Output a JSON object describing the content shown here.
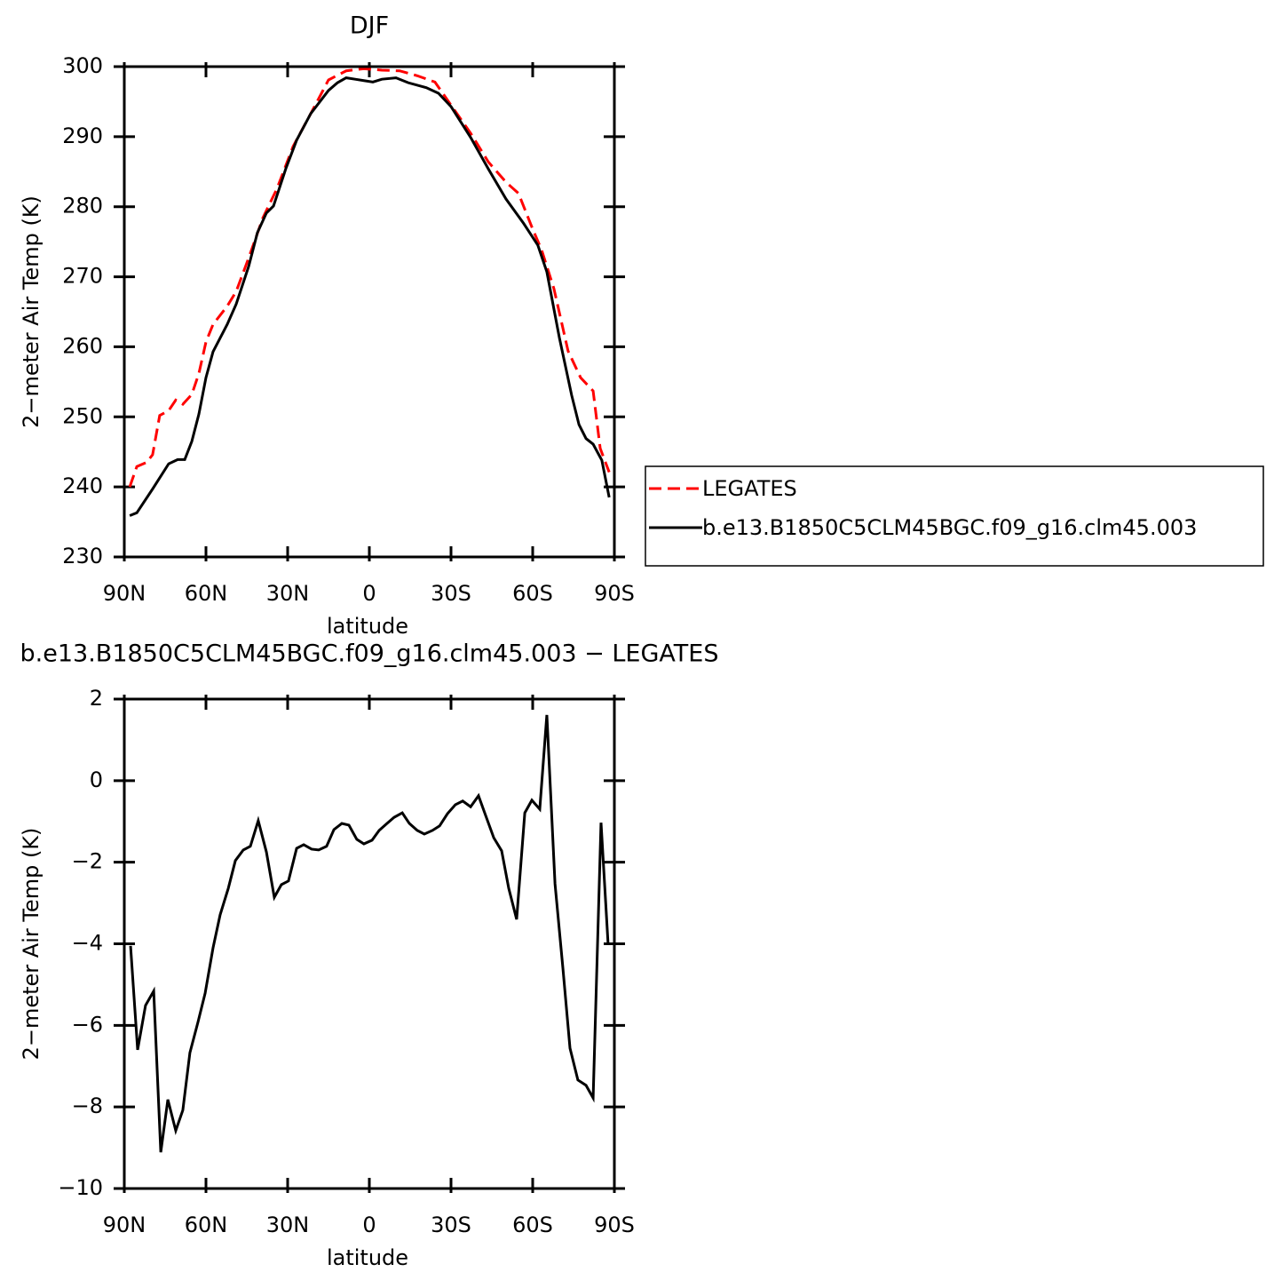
{
  "chart_data": [
    {
      "type": "line",
      "title": "DJF",
      "ylabel": "2−meter Air Temp (K)",
      "xlabel": "latitude",
      "xlim": [
        90,
        -90
      ],
      "ylim": [
        230,
        300
      ],
      "xticks": [
        {
          "value": 90,
          "label": "90N"
        },
        {
          "value": 60,
          "label": "60N"
        },
        {
          "value": 30,
          "label": "30N"
        },
        0,
        {
          "value": -30,
          "label": "30S"
        },
        {
          "value": -60,
          "label": "60S"
        },
        {
          "value": -90,
          "label": "90S"
        }
      ],
      "yticks": [
        230,
        240,
        250,
        260,
        270,
        280,
        290,
        300
      ],
      "legend": "right",
      "series": [
        {
          "name": "LEGATES",
          "color": "#ff0000",
          "dash": true,
          "x": [
            88.0,
            85.4,
            81.8,
            79.6,
            77.0,
            73.7,
            71.1,
            68.5,
            65.2,
            62.6,
            60.0,
            57.4,
            52.2,
            48.9,
            44.3,
            39.1,
            33.9,
            28.0,
            21.5,
            15.0,
            8.5,
            2.0,
            -4.6,
            -11.1,
            -17.6,
            -24.1,
            -30.0,
            -37.2,
            -43.7,
            -50.2,
            -54.8,
            -60.0,
            -63.3,
            -67.8,
            -73.0,
            -77.6,
            -82.2,
            -84.8,
            -88.1
          ],
          "values": [
            240.0,
            242.9,
            243.5,
            244.6,
            250.2,
            250.9,
            252.4,
            251.8,
            253.2,
            256.2,
            260.7,
            263.2,
            265.8,
            267.9,
            272.7,
            278.4,
            282.6,
            288.6,
            293.3,
            298.1,
            299.4,
            299.7,
            299.5,
            299.4,
            298.7,
            297.8,
            294.5,
            290.5,
            286.4,
            283.5,
            281.9,
            276.8,
            273.8,
            268.3,
            259.4,
            255.6,
            253.7,
            245.5,
            242.1
          ]
        },
        {
          "name": "b.e13.B1850C5CLM45BGC.f09_g16.clm45.003",
          "color": "#000000",
          "dash": false,
          "x": [
            88.0,
            85.4,
            79.6,
            73.7,
            70.4,
            67.8,
            65.2,
            62.6,
            60.0,
            57.4,
            52.2,
            48.9,
            44.3,
            41.1,
            37.8,
            35.2,
            30.7,
            26.7,
            21.5,
            15.0,
            11.7,
            8.5,
            5.2,
            2.0,
            -1.3,
            -4.6,
            -9.8,
            -14.3,
            -20.9,
            -25.4,
            -30.0,
            -37.2,
            -43.7,
            -50.2,
            -56.7,
            -61.9,
            -65.2,
            -69.8,
            -74.3,
            -77.0,
            -79.6,
            -82.2,
            -85.4,
            -88.1
          ],
          "values": [
            235.9,
            236.3,
            239.7,
            243.3,
            243.9,
            243.9,
            246.5,
            250.4,
            255.6,
            259.3,
            263.2,
            266.1,
            271.5,
            276.3,
            279.1,
            280.1,
            285.4,
            289.5,
            293.3,
            296.6,
            297.7,
            298.4,
            298.2,
            298.0,
            297.8,
            298.2,
            298.4,
            297.7,
            297.0,
            296.2,
            294.3,
            289.9,
            285.4,
            281.1,
            277.6,
            274.5,
            270.7,
            261.3,
            253.1,
            248.9,
            246.9,
            246.1,
            243.8,
            238.5
          ]
        }
      ]
    },
    {
      "type": "line",
      "title": "b.e13.B1850C5CLM45BGC.f09_g16.clm45.003 − LEGATES",
      "ylabel": "2−meter Air Temp (K)",
      "xlabel": "latitude",
      "xlim": [
        90,
        -90
      ],
      "ylim": [
        -10,
        2
      ],
      "xticks": [
        {
          "value": 90,
          "label": "90N"
        },
        {
          "value": 60,
          "label": "60N"
        },
        {
          "value": 30,
          "label": "30N"
        },
        0,
        {
          "value": -30,
          "label": "30S"
        },
        {
          "value": -60,
          "label": "60S"
        },
        {
          "value": -90,
          "label": "90S"
        }
      ],
      "yticks": [
        {
          "value": -10,
          "label": "−10"
        },
        {
          "value": -8,
          "label": "−8"
        },
        {
          "value": -6,
          "label": "−6"
        },
        {
          "value": -4,
          "label": "−4"
        },
        {
          "value": -2,
          "label": "−2"
        },
        0,
        2
      ],
      "color": "#000000",
      "x": [
        87.7,
        85.1,
        82.2,
        79.2,
        76.6,
        74.0,
        71.1,
        68.5,
        65.9,
        62.9,
        60.3,
        57.4,
        54.8,
        51.8,
        49.2,
        46.3,
        43.7,
        40.8,
        37.8,
        34.9,
        32.3,
        29.7,
        26.7,
        24.1,
        21.2,
        18.6,
        15.7,
        13.0,
        10.1,
        7.5,
        4.6,
        2.0,
        -1.0,
        -3.6,
        -6.5,
        -9.1,
        -12.1,
        -14.7,
        -17.6,
        -20.2,
        -23.2,
        -25.8,
        -28.7,
        -31.6,
        -34.3,
        -37.2,
        -40.1,
        -42.7,
        -45.7,
        -48.6,
        -51.2,
        -54.1,
        -57.1,
        -59.7,
        -62.6,
        -65.2,
        -68.2,
        -71.1,
        -73.7,
        -76.6,
        -79.6,
        -82.2,
        -85.1,
        -87.7
      ],
      "values": [
        -4.05,
        -6.6,
        -5.51,
        -5.16,
        -9.11,
        -7.82,
        -8.58,
        -8.08,
        -6.67,
        -5.91,
        -5.21,
        -4.1,
        -3.29,
        -2.64,
        -1.96,
        -1.7,
        -1.61,
        -0.98,
        -1.75,
        -2.86,
        -2.55,
        -2.46,
        -1.66,
        -1.57,
        -1.68,
        -1.7,
        -1.61,
        -1.2,
        -1.05,
        -1.09,
        -1.44,
        -1.55,
        -1.46,
        -1.22,
        -1.05,
        -0.9,
        -0.79,
        -1.05,
        -1.22,
        -1.31,
        -1.22,
        -1.11,
        -0.81,
        -0.59,
        -0.5,
        -0.64,
        -0.37,
        -0.85,
        -1.4,
        -1.72,
        -2.64,
        -3.4,
        -0.79,
        -0.48,
        -0.7,
        1.61,
        -2.53,
        -4.6,
        -6.56,
        -7.34,
        -7.47,
        -7.78,
        -1.03,
        -4.01
      ]
    }
  ]
}
